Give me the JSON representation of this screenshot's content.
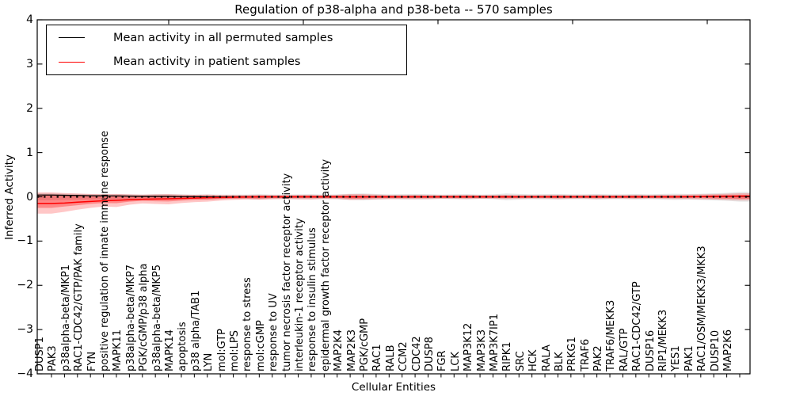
{
  "title": "Regulation of p38-alpha and p38-beta -- 570 samples",
  "axes": {
    "xlabel": "Cellular Entities",
    "ylabel": "Inferred Activity",
    "ytick_labels": [
      "4",
      "3",
      "2",
      "1",
      "0",
      "−1",
      "−2",
      "−3",
      "−4"
    ],
    "ytick_values": [
      4,
      3,
      2,
      1,
      0,
      -1,
      -2,
      -3,
      -4
    ],
    "ylim": [
      -4,
      4
    ]
  },
  "legend": [
    {
      "label": "Mean activity in all permuted samples",
      "color": "#000000"
    },
    {
      "label": "Mean activity in patient samples",
      "color": "#ff0000"
    }
  ],
  "chart_data": {
    "type": "line",
    "title": "Regulation of p38-alpha and p38-beta -- 570 samples",
    "xlabel": "Cellular Entities",
    "ylabel": "Inferred Activity",
    "ylim": [
      -4,
      4
    ],
    "grid": false,
    "legend_position": "upper left",
    "zero_line": {
      "value": 0,
      "style": "dotted",
      "color": "#000000"
    },
    "categories": [
      "DUSP1",
      "PAK3",
      "p38alpha-beta/MKP1",
      "RAC1-CDC42/GTP/PAK family",
      "FYN",
      "positive regulation of innate immune response",
      "MAPK11",
      "p38alpha-beta/MKP7",
      "PGK/cGMP/p38 alpha",
      "p38alpha-beta/MKP5",
      "MAPK14",
      "apoptosis",
      "p38 alpha/TAB1",
      "LYN",
      "mol:GTP",
      "mol:LPS",
      "response to stress",
      "mol:cGMP",
      "response to UV",
      "tumor necrosis factor receptor activity",
      "interleukin-1 receptor activity",
      "response to insulin stimulus",
      "epidermal growth factor receptor activity",
      "MAP2K4",
      "MAP2K3",
      "PGK/cGMP",
      "RAC1",
      "RALB",
      "CCM2",
      "CDC42",
      "DUSP8",
      "FGR",
      "LCK",
      "MAP3K12",
      "MAP3K3",
      "MAP3K7IP1",
      "RIPK1",
      "SRC",
      "HCK",
      "RALA",
      "BLK",
      "PRKG1",
      "TRAF6",
      "PAK2",
      "TRAF6/MEKK3",
      "RAL/GTP",
      "RAC1-CDC42/GTP",
      "DUSP16",
      "RIP1/MEKK3",
      "YES1",
      "PAK1",
      "RAC1/OSM/MEKK3/MKK3",
      "DUSP10",
      "MAP2K6"
    ],
    "series": [
      {
        "name": "Mean activity in all permuted samples",
        "color": "#000000",
        "style": "solid",
        "values": [
          0.04,
          0.035,
          0.03,
          0.025,
          0.02,
          0.02,
          0.015,
          0.01,
          0.01,
          0.01,
          0.005,
          0.005,
          0,
          0,
          0,
          0,
          0,
          0,
          0,
          0,
          0,
          0,
          0,
          0,
          0,
          0,
          0,
          0,
          0,
          0,
          0,
          0,
          0,
          0,
          0,
          0,
          0,
          0,
          0,
          0,
          0,
          0,
          0,
          0,
          0,
          0,
          0,
          0,
          0,
          0,
          0.005,
          0.005,
          0.01,
          0.01
        ]
      },
      {
        "name": "Mean activity in patient samples",
        "color": "#ff0000",
        "style": "solid",
        "values": [
          -0.15,
          -0.14,
          -0.12,
          -0.105,
          -0.09,
          -0.08,
          -0.065,
          -0.055,
          -0.05,
          -0.045,
          -0.035,
          -0.03,
          -0.02,
          -0.015,
          -0.01,
          -0.005,
          0,
          0,
          0,
          0,
          0,
          0,
          0,
          0,
          0,
          0,
          0,
          0,
          0,
          0,
          0,
          0,
          0,
          0,
          0,
          0,
          0,
          0,
          0,
          0,
          0,
          0,
          0,
          0,
          0,
          0,
          0,
          0,
          0,
          0.005,
          0.005,
          0.01,
          0.01,
          0.015
        ]
      }
    ],
    "bands": [
      {
        "name": "permuted-samples-range",
        "color": "#000000",
        "opacity": 0.1,
        "upper": [
          0.08,
          0.07,
          0.065,
          0.06,
          0.055,
          0.06,
          0.055,
          0.05,
          0.06,
          0.06,
          0.055,
          0.05,
          0.055,
          0.05,
          0.05,
          0.05,
          0.06,
          0.05,
          0.05,
          0.055,
          0.06,
          0.05,
          0.055,
          0.07,
          0.075,
          0.065,
          0.055,
          0.06,
          0.065,
          0.06,
          0.05,
          0.055,
          0.06,
          0.05,
          0.055,
          0.075,
          0.065,
          0.055,
          0.06,
          0.065,
          0.055,
          0.055,
          0.065,
          0.055,
          0.055,
          0.065,
          0.055,
          0.065,
          0.07,
          0.065,
          0.07,
          0.08,
          0.09,
          0.11
        ],
        "lower": [
          -0.08,
          -0.07,
          -0.065,
          -0.06,
          -0.055,
          -0.06,
          -0.055,
          -0.05,
          -0.06,
          -0.06,
          -0.055,
          -0.05,
          -0.055,
          -0.05,
          -0.05,
          -0.05,
          -0.06,
          -0.05,
          -0.05,
          -0.055,
          -0.06,
          -0.05,
          -0.055,
          -0.07,
          -0.075,
          -0.065,
          -0.055,
          -0.06,
          -0.065,
          -0.06,
          -0.05,
          -0.055,
          -0.06,
          -0.05,
          -0.055,
          -0.075,
          -0.065,
          -0.055,
          -0.06,
          -0.065,
          -0.055,
          -0.055,
          -0.065,
          -0.055,
          -0.055,
          -0.065,
          -0.055,
          -0.065,
          -0.07,
          -0.065,
          -0.07,
          -0.08,
          -0.09,
          -0.11
        ]
      },
      {
        "name": "patient-samples-range-outer",
        "color": "#ff0000",
        "opacity": 0.22,
        "upper": [
          0.1,
          0.085,
          0.075,
          0.065,
          0.06,
          0.065,
          0.055,
          0.05,
          0.055,
          0.06,
          0.05,
          0.045,
          0.05,
          0.04,
          0.04,
          0.04,
          0.045,
          0.04,
          0.04,
          0.045,
          0.045,
          0.04,
          0.045,
          0.06,
          0.06,
          0.05,
          0.04,
          0.04,
          0.045,
          0.04,
          0.04,
          0.04,
          0.045,
          0.04,
          0.04,
          0.045,
          0.04,
          0.04,
          0.04,
          0.045,
          0.04,
          0.04,
          0.045,
          0.04,
          0.04,
          0.045,
          0.04,
          0.045,
          0.045,
          0.05,
          0.055,
          0.06,
          0.07,
          0.08
        ],
        "lower": [
          -0.38,
          -0.34,
          -0.29,
          -0.25,
          -0.22,
          -0.23,
          -0.18,
          -0.15,
          -0.16,
          -0.17,
          -0.14,
          -0.12,
          -0.11,
          -0.085,
          -0.07,
          -0.06,
          -0.065,
          -0.055,
          -0.05,
          -0.055,
          -0.055,
          -0.05,
          -0.05,
          -0.07,
          -0.065,
          -0.055,
          -0.05,
          -0.05,
          -0.05,
          -0.05,
          -0.045,
          -0.045,
          -0.05,
          -0.045,
          -0.045,
          -0.05,
          -0.045,
          -0.04,
          -0.04,
          -0.05,
          -0.045,
          -0.04,
          -0.05,
          -0.045,
          -0.04,
          -0.045,
          -0.04,
          -0.045,
          -0.05,
          -0.05,
          -0.055,
          -0.06,
          -0.07,
          -0.08
        ]
      },
      {
        "name": "patient-samples-range-inner",
        "color": "#ff0000",
        "opacity": 0.32,
        "upper": [
          0.05,
          0.045,
          0.04,
          0.035,
          0.03,
          0.035,
          0.03,
          0.025,
          0.03,
          0.03,
          0.025,
          0.025,
          0.025,
          0.02,
          0.02,
          0.02,
          0.025,
          0.02,
          0.02,
          0.025,
          0.025,
          0.02,
          0.025,
          0.03,
          0.03,
          0.025,
          0.02,
          0.02,
          0.025,
          0.02,
          0.02,
          0.02,
          0.025,
          0.02,
          0.02,
          0.025,
          0.02,
          0.02,
          0.02,
          0.025,
          0.02,
          0.02,
          0.025,
          0.02,
          0.02,
          0.025,
          0.02,
          0.025,
          0.025,
          0.025,
          0.03,
          0.035,
          0.04,
          0.045
        ],
        "lower": [
          -0.25,
          -0.22,
          -0.19,
          -0.16,
          -0.14,
          -0.145,
          -0.11,
          -0.09,
          -0.1,
          -0.105,
          -0.085,
          -0.07,
          -0.065,
          -0.05,
          -0.04,
          -0.035,
          -0.04,
          -0.03,
          -0.03,
          -0.03,
          -0.03,
          -0.03,
          -0.03,
          -0.04,
          -0.04,
          -0.03,
          -0.03,
          -0.03,
          -0.03,
          -0.03,
          -0.025,
          -0.025,
          -0.03,
          -0.025,
          -0.025,
          -0.03,
          -0.025,
          -0.025,
          -0.025,
          -0.03,
          -0.025,
          -0.025,
          -0.03,
          -0.025,
          -0.025,
          -0.03,
          -0.025,
          -0.025,
          -0.03,
          -0.03,
          -0.03,
          -0.035,
          -0.04,
          -0.045
        ]
      }
    ]
  }
}
